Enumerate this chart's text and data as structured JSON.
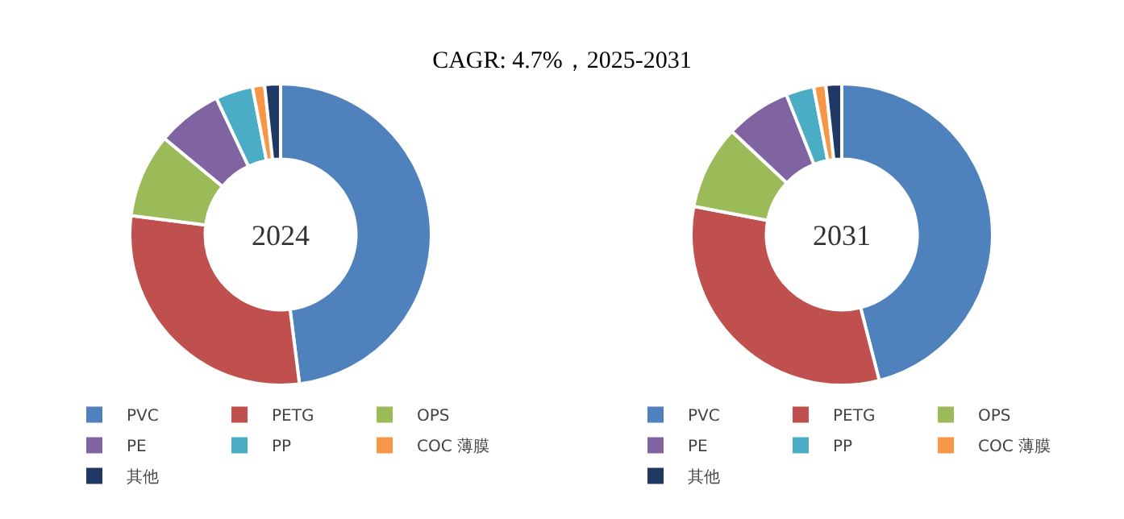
{
  "chart_data": [
    {
      "type": "donut",
      "title": "CAGR:  4.7%，2025-2031",
      "annotations": [
        "2024"
      ],
      "categories": [
        "PVC",
        "PETG",
        "OPS",
        "PE",
        "PP",
        "COC 薄膜",
        "其他"
      ],
      "values": [
        48,
        29,
        9,
        7,
        4,
        1.3,
        1.7
      ],
      "colors": [
        "#4f81bd",
        "#c0504d",
        "#9bbb59",
        "#8064a2",
        "#4bacc6",
        "#f79646",
        "#1f3864"
      ],
      "legend": "bottom"
    },
    {
      "type": "donut",
      "annotations": [
        "2031"
      ],
      "categories": [
        "PVC",
        "PETG",
        "OPS",
        "PE",
        "PP",
        "COC 薄膜",
        "其他"
      ],
      "values": [
        46,
        32,
        9,
        7,
        3,
        1.3,
        1.7
      ],
      "colors": [
        "#4f81bd",
        "#c0504d",
        "#9bbb59",
        "#8064a2",
        "#4bacc6",
        "#f79646",
        "#1f3864"
      ],
      "legend": "bottom"
    }
  ]
}
